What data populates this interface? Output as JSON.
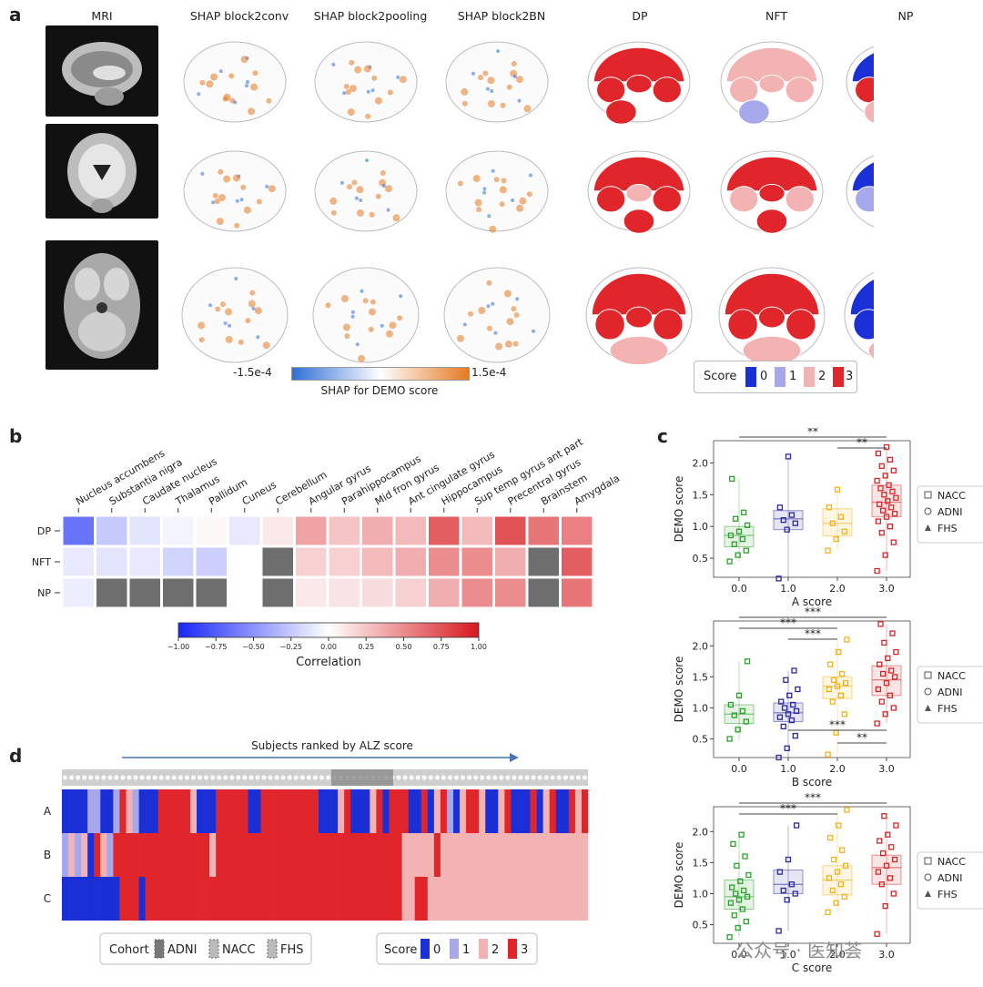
{
  "panels": {
    "a": "a",
    "b": "b",
    "c": "c",
    "d": "d"
  },
  "panel_a": {
    "columns": [
      "MRI",
      "SHAP block2conv",
      "SHAP block2pooling",
      "SHAP block2BN",
      "DP",
      "NFT",
      "NP"
    ],
    "shap_colorbar": {
      "min_label": "-1.5e-4",
      "max_label": "1.5e-4",
      "title": "SHAP for DEMO score",
      "low_color": "#2f6fd6",
      "high_color": "#e47a22"
    },
    "score_legend": {
      "title": "Score",
      "levels": [
        "0",
        "1",
        "2",
        "3"
      ],
      "colors": [
        "#1b2fd6",
        "#a7a8ec",
        "#f3b3b3",
        "#e0262a"
      ]
    }
  },
  "chart_data": [
    {
      "type": "heatmap",
      "panel": "b",
      "columns": [
        "Nucleus accumbens",
        "Substantia nigra",
        "Caudate nucleus",
        "Thalamus",
        "Pallidum",
        "Cuneus",
        "Cerebellum",
        "Angular gyrus",
        "Parahippocampus",
        "Mid fron gyrus",
        "Ant cingulate gyrus",
        "Hippocampus",
        "Sup temp gyrus ant part",
        "Precentral gyrus",
        "Brainstem",
        "Amygdala"
      ],
      "rows": [
        "DP",
        "NFT",
        "NP"
      ],
      "values": [
        [
          -0.65,
          -0.25,
          -0.12,
          -0.05,
          0.03,
          -0.1,
          0.1,
          0.4,
          0.25,
          0.35,
          0.3,
          0.7,
          0.3,
          0.75,
          0.6,
          0.55
        ],
        [
          -0.1,
          -0.12,
          -0.1,
          -0.2,
          -0.22,
          0.0,
          null,
          0.2,
          0.2,
          0.3,
          0.35,
          0.5,
          0.5,
          0.35,
          null,
          0.7
        ],
        [
          -0.08,
          null,
          null,
          null,
          null,
          0.0,
          null,
          0.1,
          0.12,
          0.15,
          0.2,
          0.35,
          0.5,
          0.5,
          null,
          0.6
        ]
      ],
      "colorbar": {
        "ticks": [
          "−1.00",
          "−0.75",
          "−0.50",
          "−0.25",
          "0.00",
          "0.25",
          "0.50",
          "0.75",
          "1.00"
        ],
        "range": [
          -1,
          1
        ],
        "label": "Correlation"
      }
    },
    {
      "type": "scatter",
      "panel": "c",
      "ylabel": "DEMO score",
      "legend": [
        "NACC",
        "ADNI",
        "FHS"
      ],
      "colors": [
        "#2ca02c",
        "#2a2aa0",
        "#f2b21b",
        "#d62728"
      ],
      "subplots": [
        {
          "xlabel": "A score",
          "categories": [
            "0.0",
            "1.0",
            "2.0",
            "3.0"
          ],
          "yticks": [
            "0.5",
            "1.0",
            "1.5",
            "2.0"
          ],
          "ylim": [
            0.2,
            2.35
          ],
          "groups": [
            [
              0.45,
              0.55,
              0.62,
              0.72,
              0.8,
              0.86,
              0.92,
              1.02,
              1.12,
              1.22,
              1.75
            ],
            [
              0.18,
              0.95,
              1.05,
              1.1,
              1.18,
              1.3,
              2.1
            ],
            [
              0.62,
              0.8,
              0.92,
              1.05,
              1.15,
              1.3,
              1.58
            ],
            [
              0.3,
              0.55,
              0.75,
              0.9,
              1.0,
              1.08,
              1.15,
              1.2,
              1.25,
              1.3,
              1.35,
              1.4,
              1.45,
              1.5,
              1.55,
              1.6,
              1.65,
              1.72,
              1.8,
              1.88,
              1.95,
              2.05,
              2.15,
              2.25
            ]
          ],
          "box": [
            [
              0.68,
              0.86,
              1.0
            ],
            [
              0.95,
              1.12,
              1.25
            ],
            [
              0.85,
              1.05,
              1.28
            ],
            [
              1.15,
              1.38,
              1.65
            ]
          ],
          "significance": [
            {
              "from": 0,
              "to": 3,
              "label": "**"
            },
            {
              "from": 2,
              "to": 3,
              "label": "**"
            }
          ]
        },
        {
          "xlabel": "B score",
          "categories": [
            "0.0",
            "1.0",
            "2.0",
            "3.0"
          ],
          "yticks": [
            "0.5",
            "1.0",
            "1.5",
            "2.0"
          ],
          "ylim": [
            0.2,
            2.4
          ],
          "groups": [
            [
              0.5,
              0.65,
              0.78,
              0.88,
              0.95,
              1.05,
              1.2,
              1.75
            ],
            [
              0.2,
              0.35,
              0.55,
              0.7,
              0.8,
              0.85,
              0.9,
              0.95,
              1.0,
              1.05,
              1.1,
              1.2,
              1.3,
              1.45,
              1.6
            ],
            [
              0.25,
              0.6,
              0.9,
              1.1,
              1.2,
              1.3,
              1.35,
              1.4,
              1.45,
              1.55,
              1.7,
              1.9,
              2.1
            ],
            [
              0.75,
              0.9,
              1.0,
              1.1,
              1.2,
              1.3,
              1.4,
              1.5,
              1.55,
              1.6,
              1.7,
              1.8,
              1.9,
              2.05,
              2.2,
              2.35
            ]
          ],
          "box": [
            [
              0.75,
              0.9,
              1.05
            ],
            [
              0.78,
              0.92,
              1.08
            ],
            [
              1.15,
              1.35,
              1.5
            ],
            [
              1.2,
              1.45,
              1.68
            ]
          ],
          "significance": [
            {
              "from": 0,
              "to": 3,
              "label": "***"
            },
            {
              "from": 0,
              "to": 2,
              "label": "***"
            },
            {
              "from": 1,
              "to": 2,
              "label": "***"
            },
            {
              "from": 1,
              "to": 3,
              "label": "***",
              "below": true
            },
            {
              "from": 2,
              "to": 3,
              "label": "**",
              "below": true
            }
          ]
        },
        {
          "xlabel": "C score",
          "categories": [
            "0.0",
            "1.0",
            "2.0",
            "3.0"
          ],
          "yticks": [
            "0.5",
            "1.0",
            "1.5",
            "2.0"
          ],
          "ylim": [
            0.2,
            2.4
          ],
          "groups": [
            [
              0.3,
              0.45,
              0.55,
              0.65,
              0.75,
              0.85,
              0.9,
              0.95,
              1.0,
              1.05,
              1.1,
              1.2,
              1.3,
              1.45,
              1.6,
              1.8,
              1.95
            ],
            [
              0.4,
              0.9,
              1.0,
              1.05,
              1.15,
              1.35,
              1.55,
              2.1
            ],
            [
              0.7,
              0.85,
              0.95,
              1.05,
              1.15,
              1.25,
              1.35,
              1.45,
              1.55,
              1.7,
              1.9,
              2.1,
              2.35
            ],
            [
              0.35,
              0.8,
              1.0,
              1.15,
              1.25,
              1.35,
              1.45,
              1.55,
              1.65,
              1.75,
              1.85,
              1.95,
              2.1,
              2.25
            ]
          ],
          "box": [
            [
              0.75,
              0.95,
              1.22
            ],
            [
              1.0,
              1.15,
              1.38
            ],
            [
              0.98,
              1.22,
              1.45
            ],
            [
              1.15,
              1.42,
              1.62
            ]
          ],
          "significance": [
            {
              "from": 0,
              "to": 3,
              "label": "***"
            },
            {
              "from": 0,
              "to": 2,
              "label": "***"
            }
          ]
        }
      ]
    },
    {
      "type": "heatmap",
      "panel": "d",
      "title": "Subjects ranked by ALZ score",
      "rows": [
        "A",
        "B",
        "C"
      ],
      "cohort_legend": {
        "title": "Cohort",
        "entries": [
          "ADNI",
          "NACC",
          "FHS"
        ]
      },
      "score_legend": {
        "title": "Score",
        "levels": [
          "0",
          "1",
          "2",
          "3"
        ]
      },
      "score_strings": [
        "0000110013210003333320003333300333333333000230002303330030231023320023000302300323",
        "1212032133333333333333323333333333333333333333333333322222322222222222222222222222",
        "0000000003330333333333333333333333333333333333333333322332222222222222222222222222"
      ]
    }
  ],
  "watermark": "公众号 · 医知荟"
}
